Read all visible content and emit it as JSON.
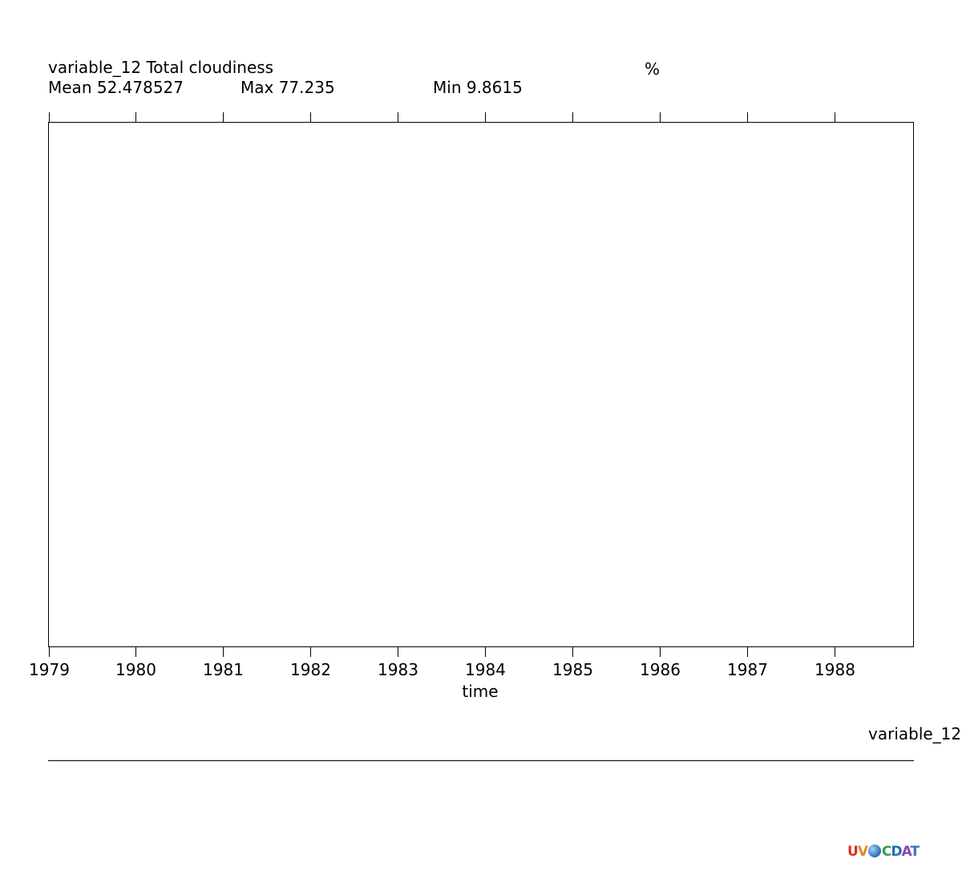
{
  "header": {
    "variable_title": "variable_12 Total cloudiness",
    "units": "%",
    "mean_label": "Mean 52.478527",
    "max_label": "Max 77.235",
    "min_label": "Min 9.8615"
  },
  "legend": {
    "label": "variable_12"
  },
  "logo": {
    "text_u": "U",
    "text_v": "V",
    "text_c": "C",
    "text_d": "D",
    "text_a": "A",
    "text_t": "T"
  },
  "chart_data": {
    "type": "line",
    "xlabel": "time",
    "ylabel": "",
    "xlim": [
      1979,
      1988.9
    ],
    "ylim": [
      9.8615,
      77.235
    ],
    "x_ticks": [
      "1979",
      "1980",
      "1981",
      "1982",
      "1983",
      "1984",
      "1985",
      "1986",
      "1987",
      "1988"
    ],
    "grid": false,
    "series": [
      {
        "name": "variable_12",
        "x": [],
        "values": []
      }
    ]
  }
}
